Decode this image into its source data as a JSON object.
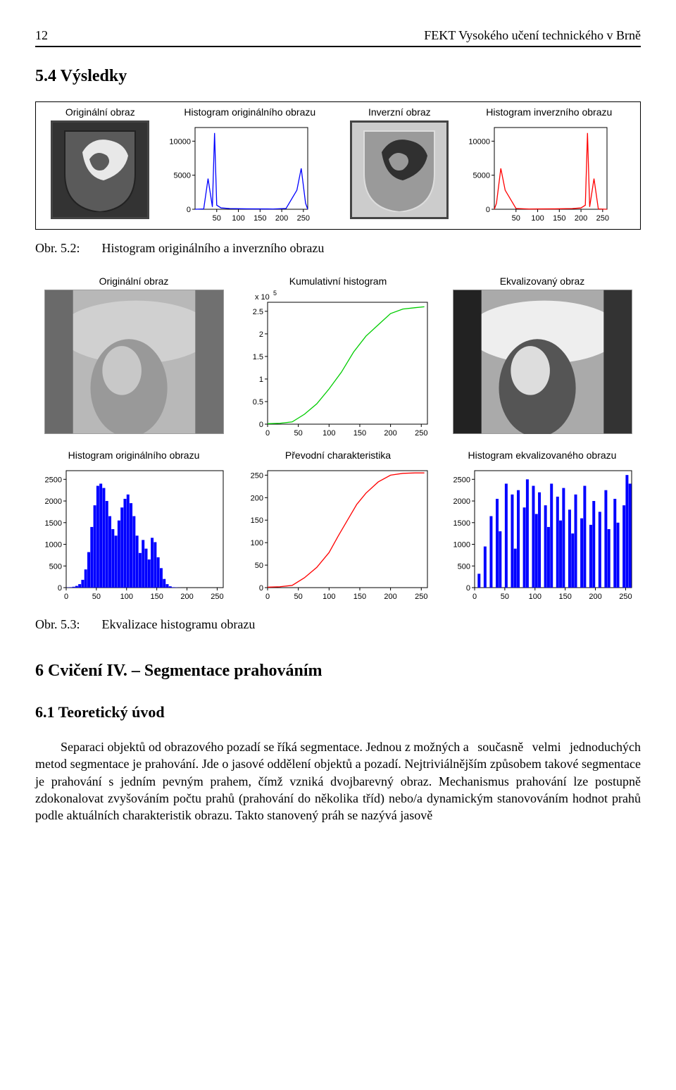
{
  "header": {
    "page_number": "12",
    "running_head": "FEKT Vysokého učení technického v Brně"
  },
  "section_results": "5.4  Výsledky",
  "fig52": {
    "panels": {
      "orig_img": {
        "title": "Originální obraz"
      },
      "orig_hist": {
        "title": "Histogram originálního obrazu",
        "type": "line",
        "color": "#0000ff",
        "xlim": [
          0,
          260
        ],
        "xticks": [
          50,
          100,
          150,
          200,
          250
        ],
        "ylim": [
          0,
          12000
        ],
        "yticks": [
          0,
          5000,
          10000
        ],
        "points": [
          [
            0,
            0
          ],
          [
            20,
            50
          ],
          [
            30,
            4500
          ],
          [
            40,
            350
          ],
          [
            45,
            11200
          ],
          [
            50,
            600
          ],
          [
            60,
            200
          ],
          [
            80,
            100
          ],
          [
            120,
            60
          ],
          [
            180,
            40
          ],
          [
            210,
            120
          ],
          [
            235,
            2800
          ],
          [
            245,
            6000
          ],
          [
            255,
            900
          ],
          [
            260,
            0
          ]
        ]
      },
      "inv_img": {
        "title": "Inverzní obraz"
      },
      "inv_hist": {
        "title": "Histogram inverzního obrazu",
        "type": "line",
        "color": "#ff0000",
        "xlim": [
          0,
          260
        ],
        "xticks": [
          50,
          100,
          150,
          200,
          250
        ],
        "ylim": [
          0,
          12000
        ],
        "yticks": [
          0,
          5000,
          10000
        ],
        "points": [
          [
            0,
            0
          ],
          [
            5,
            900
          ],
          [
            15,
            6000
          ],
          [
            25,
            2800
          ],
          [
            50,
            120
          ],
          [
            80,
            40
          ],
          [
            140,
            60
          ],
          [
            180,
            100
          ],
          [
            200,
            200
          ],
          [
            210,
            600
          ],
          [
            215,
            11200
          ],
          [
            220,
            350
          ],
          [
            230,
            4500
          ],
          [
            240,
            50
          ],
          [
            260,
            0
          ]
        ]
      }
    }
  },
  "caption52": {
    "label": "Obr. 5.2:",
    "text": "Histogram originálního a inverzního obrazu"
  },
  "fig53": {
    "row1": {
      "orig_img": {
        "title": "Originální obraz"
      },
      "cum_hist": {
        "title": "Kumulativní histogram",
        "exp_label": "x 10",
        "exp_sup": "5",
        "type": "line",
        "color": "#00cc00",
        "xlim": [
          0,
          260
        ],
        "xticks": [
          0,
          50,
          100,
          150,
          200,
          250
        ],
        "ylim": [
          0,
          2.7
        ],
        "yticks": [
          0,
          0.5,
          1,
          1.5,
          2,
          2.5
        ],
        "points": [
          [
            0,
            0.01
          ],
          [
            20,
            0.02
          ],
          [
            40,
            0.05
          ],
          [
            60,
            0.22
          ],
          [
            80,
            0.45
          ],
          [
            100,
            0.78
          ],
          [
            120,
            1.15
          ],
          [
            140,
            1.6
          ],
          [
            160,
            1.95
          ],
          [
            180,
            2.2
          ],
          [
            200,
            2.45
          ],
          [
            220,
            2.55
          ],
          [
            240,
            2.58
          ],
          [
            255,
            2.6
          ]
        ]
      },
      "eq_img": {
        "title": "Ekvalizovaný obraz"
      }
    },
    "row2": {
      "hist_orig": {
        "title": "Histogram originálního obrazu",
        "type": "bar",
        "color": "#0000ff",
        "xlim": [
          0,
          260
        ],
        "xticks": [
          0,
          50,
          100,
          150,
          200,
          250
        ],
        "ylim": [
          0,
          2700
        ],
        "yticks": [
          0,
          500,
          1000,
          1500,
          2000,
          2500
        ],
        "values": [
          5,
          10,
          20,
          40,
          80,
          180,
          420,
          820,
          1400,
          1900,
          2350,
          2400,
          2300,
          2000,
          1650,
          1350,
          1200,
          1550,
          1850,
          2050,
          2150,
          1950,
          1650,
          1200,
          800,
          1100,
          900,
          650,
          1150,
          1050,
          700,
          450,
          200,
          80,
          30,
          10,
          5,
          2,
          0,
          0,
          0,
          0,
          0,
          0,
          0,
          0,
          0,
          0,
          0,
          0,
          0,
          0
        ]
      },
      "transfer": {
        "title": "Převodní charakteristika",
        "type": "line",
        "color": "#ff0000",
        "xlim": [
          0,
          260
        ],
        "xticks": [
          0,
          50,
          100,
          150,
          200,
          250
        ],
        "ylim": [
          0,
          260
        ],
        "yticks": [
          0,
          50,
          100,
          150,
          200,
          250
        ],
        "points": [
          [
            0,
            1
          ],
          [
            20,
            2
          ],
          [
            40,
            5
          ],
          [
            60,
            22
          ],
          [
            80,
            45
          ],
          [
            100,
            78
          ],
          [
            115,
            115
          ],
          [
            130,
            150
          ],
          [
            145,
            185
          ],
          [
            160,
            210
          ],
          [
            180,
            235
          ],
          [
            200,
            250
          ],
          [
            220,
            254
          ],
          [
            240,
            255
          ],
          [
            255,
            255
          ]
        ]
      },
      "hist_eq": {
        "title": "Histogram ekvalizovaného obrazu",
        "type": "bar",
        "color": "#0000ff",
        "xlim": [
          0,
          260
        ],
        "xticks": [
          0,
          50,
          100,
          150,
          200,
          250
        ],
        "ylim": [
          0,
          2700
        ],
        "yticks": [
          0,
          500,
          1000,
          1500,
          2000,
          2500
        ],
        "values": [
          0,
          320,
          0,
          950,
          0,
          1650,
          0,
          2050,
          1300,
          0,
          2400,
          0,
          2150,
          900,
          2250,
          0,
          1850,
          2500,
          0,
          2350,
          1700,
          2200,
          0,
          1900,
          1400,
          2400,
          0,
          2100,
          1550,
          2300,
          0,
          1800,
          1250,
          2150,
          0,
          1600,
          2350,
          0,
          1450,
          2000,
          0,
          1750,
          0,
          2250,
          1350,
          0,
          2050,
          1500,
          0,
          1900,
          2600,
          2400
        ]
      }
    }
  },
  "caption53": {
    "label": "Obr. 5.3:",
    "text": "Ekvalizace histogramu obrazu"
  },
  "chapter6": "6   Cvičení IV. – Segmentace prahováním",
  "sec61": "6.1  Teoretický úvod",
  "body": {
    "p1_first": "Separaci objektů od obrazového pozadí se říká segmentace. Jednou z možných a",
    "p1_rest": "současně velmi jednoduchých metod segmentace je prahování. Jde o jasové oddělení objektů a pozadí. Nejtriviálnějším způsobem takové segmentace je prahování s jedním pevným prahem, čímž vzniká dvojbarevný obraz. Mechanismus prahování lze postupně zdokonalovat zvyšováním počtu prahů (prahování do několika tříd) nebo/a dynamickým stanovováním hodnot prahů podle aktuálních charakteristik obrazu. Takto stanovený práh se nazývá jasově"
  },
  "axis_font": {
    "family": "Arial",
    "size": 11,
    "color": "#000000"
  },
  "grid_color": "#e0e0e0",
  "background_color": "#ffffff"
}
